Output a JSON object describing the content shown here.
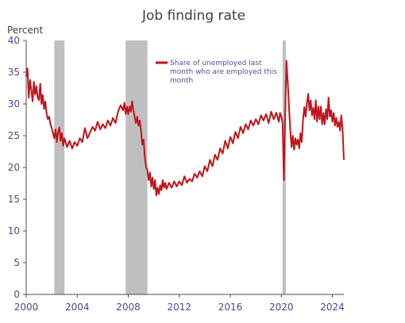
{
  "chart_data": {
    "type": "line",
    "title": "Job finding rate",
    "ylabel": "Percent",
    "xlabel": "",
    "xlim": [
      2000,
      2024.9
    ],
    "ylim": [
      0,
      40
    ],
    "xticks": [
      2000,
      2004,
      2008,
      2012,
      2016,
      2020,
      2024
    ],
    "yticks": [
      0,
      5,
      10,
      15,
      20,
      25,
      30,
      35,
      40
    ],
    "recessions": [
      {
        "start": 2002.2,
        "end": 2003.0
      },
      {
        "start": 2007.8,
        "end": 2009.5
      },
      {
        "start": 2020.1,
        "end": 2020.35
      }
    ],
    "series": [
      {
        "name": "Share of unemployed last month who are employed this month",
        "legend_lines": [
          "Share of unemployed last",
          "month who are employed this",
          "month"
        ],
        "color": "#c0141c",
        "points": [
          [
            2000.0,
            34.3
          ],
          [
            2000.1,
            35.6
          ],
          [
            2000.2,
            31.0
          ],
          [
            2000.3,
            33.8
          ],
          [
            2000.4,
            32.2
          ],
          [
            2000.5,
            30.4
          ],
          [
            2000.6,
            33.5
          ],
          [
            2000.7,
            31.5
          ],
          [
            2000.8,
            32.8
          ],
          [
            2000.9,
            31.0
          ],
          [
            2001.0,
            30.6
          ],
          [
            2001.1,
            33.2
          ],
          [
            2001.2,
            30.0
          ],
          [
            2001.3,
            31.4
          ],
          [
            2001.4,
            29.2
          ],
          [
            2001.5,
            30.4
          ],
          [
            2001.6,
            28.4
          ],
          [
            2001.7,
            27.6
          ],
          [
            2001.8,
            28.0
          ],
          [
            2001.9,
            26.8
          ],
          [
            2002.0,
            26.2
          ],
          [
            2002.1,
            25.4
          ],
          [
            2002.2,
            24.6
          ],
          [
            2002.3,
            26.0
          ],
          [
            2002.4,
            24.0
          ],
          [
            2002.5,
            25.6
          ],
          [
            2002.6,
            26.3
          ],
          [
            2002.7,
            24.2
          ],
          [
            2002.8,
            25.4
          ],
          [
            2002.9,
            23.4
          ],
          [
            2003.0,
            24.6
          ],
          [
            2003.2,
            23.2
          ],
          [
            2003.4,
            24.2
          ],
          [
            2003.6,
            23.0
          ],
          [
            2003.8,
            24.0
          ],
          [
            2004.0,
            23.4
          ],
          [
            2004.2,
            24.6
          ],
          [
            2004.4,
            24.0
          ],
          [
            2004.6,
            26.2
          ],
          [
            2004.8,
            24.6
          ],
          [
            2005.0,
            25.5
          ],
          [
            2005.2,
            26.4
          ],
          [
            2005.4,
            25.8
          ],
          [
            2005.6,
            27.2
          ],
          [
            2005.8,
            26.0
          ],
          [
            2006.0,
            26.8
          ],
          [
            2006.2,
            26.2
          ],
          [
            2006.4,
            27.4
          ],
          [
            2006.6,
            26.6
          ],
          [
            2006.8,
            27.8
          ],
          [
            2007.0,
            27.0
          ],
          [
            2007.2,
            28.8
          ],
          [
            2007.4,
            29.8
          ],
          [
            2007.6,
            29.0
          ],
          [
            2007.7,
            30.2
          ],
          [
            2007.8,
            28.4
          ],
          [
            2007.9,
            29.6
          ],
          [
            2008.0,
            28.4
          ],
          [
            2008.1,
            29.6
          ],
          [
            2008.2,
            28.8
          ],
          [
            2008.3,
            30.4
          ],
          [
            2008.4,
            29.0
          ],
          [
            2008.5,
            28.0
          ],
          [
            2008.6,
            27.0
          ],
          [
            2008.7,
            28.0
          ],
          [
            2008.8,
            26.6
          ],
          [
            2008.9,
            27.4
          ],
          [
            2009.0,
            25.8
          ],
          [
            2009.1,
            23.6
          ],
          [
            2009.2,
            24.4
          ],
          [
            2009.3,
            21.6
          ],
          [
            2009.4,
            20.0
          ],
          [
            2009.5,
            19.6
          ],
          [
            2009.6,
            18.0
          ],
          [
            2009.7,
            19.2
          ],
          [
            2009.8,
            17.0
          ],
          [
            2009.9,
            18.4
          ],
          [
            2010.0,
            16.6
          ],
          [
            2010.1,
            18.0
          ],
          [
            2010.2,
            15.6
          ],
          [
            2010.3,
            16.8
          ],
          [
            2010.4,
            15.8
          ],
          [
            2010.5,
            17.2
          ],
          [
            2010.6,
            16.4
          ],
          [
            2010.7,
            18.0
          ],
          [
            2010.8,
            16.8
          ],
          [
            2010.9,
            17.6
          ],
          [
            2011.0,
            16.6
          ],
          [
            2011.2,
            17.6
          ],
          [
            2011.4,
            16.8
          ],
          [
            2011.6,
            17.8
          ],
          [
            2011.8,
            17.0
          ],
          [
            2012.0,
            17.8
          ],
          [
            2012.2,
            17.2
          ],
          [
            2012.4,
            18.6
          ],
          [
            2012.6,
            17.6
          ],
          [
            2012.8,
            18.2
          ],
          [
            2013.0,
            17.8
          ],
          [
            2013.2,
            19.0
          ],
          [
            2013.4,
            18.4
          ],
          [
            2013.6,
            19.4
          ],
          [
            2013.8,
            18.6
          ],
          [
            2014.0,
            20.2
          ],
          [
            2014.2,
            19.4
          ],
          [
            2014.4,
            21.2
          ],
          [
            2014.6,
            20.2
          ],
          [
            2014.8,
            22.0
          ],
          [
            2015.0,
            21.2
          ],
          [
            2015.2,
            23.0
          ],
          [
            2015.4,
            22.2
          ],
          [
            2015.6,
            24.2
          ],
          [
            2015.8,
            23.0
          ],
          [
            2016.0,
            24.8
          ],
          [
            2016.2,
            23.8
          ],
          [
            2016.4,
            25.6
          ],
          [
            2016.6,
            24.6
          ],
          [
            2016.8,
            26.4
          ],
          [
            2017.0,
            25.4
          ],
          [
            2017.2,
            26.8
          ],
          [
            2017.4,
            26.0
          ],
          [
            2017.6,
            27.4
          ],
          [
            2017.8,
            26.6
          ],
          [
            2018.0,
            27.6
          ],
          [
            2018.2,
            26.8
          ],
          [
            2018.4,
            28.2
          ],
          [
            2018.6,
            27.4
          ],
          [
            2018.8,
            28.4
          ],
          [
            2019.0,
            27.0
          ],
          [
            2019.2,
            28.8
          ],
          [
            2019.4,
            27.6
          ],
          [
            2019.6,
            28.6
          ],
          [
            2019.8,
            27.2
          ],
          [
            2019.9,
            28.6
          ],
          [
            2020.0,
            28.0
          ],
          [
            2020.1,
            27.0
          ],
          [
            2020.2,
            18.0
          ],
          [
            2020.3,
            28.0
          ],
          [
            2020.4,
            36.8
          ],
          [
            2020.5,
            33.5
          ],
          [
            2020.6,
            29.5
          ],
          [
            2020.7,
            26.0
          ],
          [
            2020.8,
            23.2
          ],
          [
            2020.9,
            25.0
          ],
          [
            2021.0,
            22.8
          ],
          [
            2021.1,
            24.6
          ],
          [
            2021.2,
            23.6
          ],
          [
            2021.3,
            24.4
          ],
          [
            2021.4,
            23.0
          ],
          [
            2021.5,
            25.4
          ],
          [
            2021.6,
            24.0
          ],
          [
            2021.7,
            27.5
          ],
          [
            2021.8,
            29.5
          ],
          [
            2021.9,
            28.0
          ],
          [
            2022.0,
            30.0
          ],
          [
            2022.1,
            31.6
          ],
          [
            2022.2,
            29.0
          ],
          [
            2022.3,
            30.6
          ],
          [
            2022.4,
            28.2
          ],
          [
            2022.5,
            29.4
          ],
          [
            2022.6,
            27.6
          ],
          [
            2022.7,
            30.6
          ],
          [
            2022.8,
            27.2
          ],
          [
            2022.9,
            29.6
          ],
          [
            2023.0,
            27.6
          ],
          [
            2023.1,
            29.6
          ],
          [
            2023.2,
            26.8
          ],
          [
            2023.3,
            28.6
          ],
          [
            2023.4,
            26.8
          ],
          [
            2023.5,
            29.2
          ],
          [
            2023.6,
            27.6
          ],
          [
            2023.7,
            31.0
          ],
          [
            2023.8,
            28.0
          ],
          [
            2023.9,
            29.0
          ],
          [
            2024.0,
            27.2
          ],
          [
            2024.1,
            28.6
          ],
          [
            2024.2,
            26.6
          ],
          [
            2024.3,
            27.8
          ],
          [
            2024.4,
            26.4
          ],
          [
            2024.5,
            27.2
          ],
          [
            2024.6,
            25.8
          ],
          [
            2024.7,
            28.2
          ],
          [
            2024.8,
            26.0
          ],
          [
            2024.9,
            21.2
          ]
        ]
      }
    ]
  }
}
